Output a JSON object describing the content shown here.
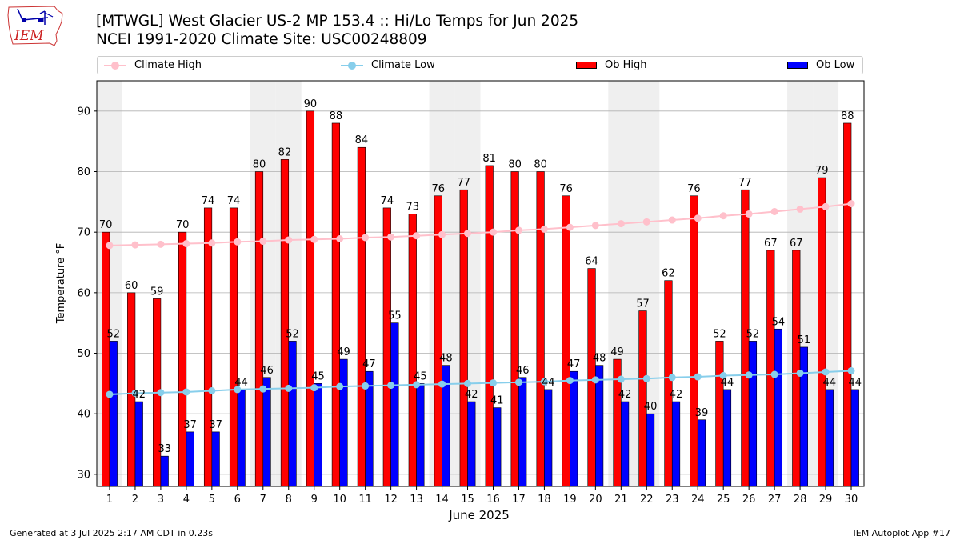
{
  "header": {
    "title_line1": "[MTWGL] West Glacier US-2 MP 153.4 :: Hi/Lo Temps for Jun 2025",
    "title_line2": "NCEI 1991-2020 Climate Site: USC00248809",
    "logo_text": "IEM"
  },
  "legend": {
    "climate_high": "Climate High",
    "climate_low": "Climate Low",
    "ob_high": "Ob High",
    "ob_low": "Ob Low"
  },
  "footer": {
    "generated": "Generated at 3 Jul 2025 2:17 AM CDT in 0.23s",
    "app": "IEM Autoplot App #17"
  },
  "colors": {
    "ob_high": "#ff0000",
    "ob_low": "#0000ff",
    "climate_high": "#ffc0cb",
    "climate_low": "#87ceeb",
    "weekend_shade": "#efefef",
    "grid": "#b0b0b0"
  },
  "chart_data": {
    "type": "bar",
    "title": "[MTWGL] West Glacier US-2 MP 153.4 :: Hi/Lo Temps for Jun 2025",
    "xlabel": "June 2025",
    "ylabel": "Temperature °F",
    "ylim": [
      28,
      95
    ],
    "yticks": [
      30,
      40,
      50,
      60,
      70,
      80,
      90
    ],
    "grid": "horizontal",
    "legend_position": "top",
    "categories": [
      "1",
      "2",
      "3",
      "4",
      "5",
      "6",
      "7",
      "8",
      "9",
      "10",
      "11",
      "12",
      "13",
      "14",
      "15",
      "16",
      "17",
      "18",
      "19",
      "20",
      "21",
      "22",
      "23",
      "24",
      "25",
      "26",
      "27",
      "28",
      "29",
      "30"
    ],
    "shaded_days": [
      1,
      7,
      8,
      14,
      15,
      21,
      22,
      28,
      29
    ],
    "series": [
      {
        "name": "Ob High",
        "type": "bar",
        "values": [
          70,
          60,
          59,
          70,
          74,
          74,
          80,
          82,
          90,
          88,
          84,
          74,
          73,
          76,
          77,
          81,
          80,
          80,
          76,
          64,
          49,
          57,
          62,
          76,
          52,
          77,
          67,
          67,
          79,
          88
        ]
      },
      {
        "name": "Ob Low",
        "type": "bar",
        "values": [
          52,
          42,
          33,
          37,
          37,
          44,
          46,
          52,
          45,
          49,
          47,
          55,
          45,
          48,
          42,
          41,
          46,
          44,
          47,
          48,
          42,
          40,
          42,
          39,
          44,
          52,
          54,
          51,
          44,
          44
        ]
      },
      {
        "name": "Climate High",
        "type": "line",
        "values": [
          67.8,
          67.9,
          68.0,
          68.1,
          68.2,
          68.4,
          68.5,
          68.7,
          68.8,
          68.9,
          69.1,
          69.2,
          69.4,
          69.6,
          69.8,
          70.0,
          70.3,
          70.5,
          70.8,
          71.1,
          71.4,
          71.7,
          72.0,
          72.3,
          72.7,
          73.0,
          73.4,
          73.8,
          74.2,
          74.7
        ]
      },
      {
        "name": "Climate Low",
        "type": "line",
        "values": [
          43.2,
          43.4,
          43.5,
          43.6,
          43.8,
          44.0,
          44.1,
          44.2,
          44.3,
          44.5,
          44.6,
          44.7,
          44.8,
          44.9,
          45.0,
          45.1,
          45.2,
          45.3,
          45.5,
          45.6,
          45.7,
          45.8,
          46.0,
          46.1,
          46.3,
          46.4,
          46.5,
          46.7,
          46.9,
          47.1
        ]
      }
    ]
  }
}
